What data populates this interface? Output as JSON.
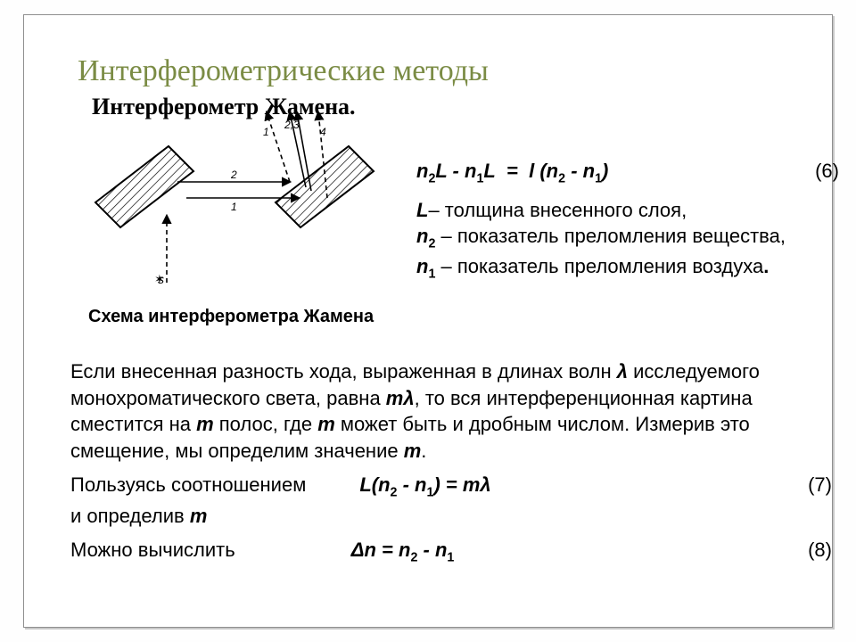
{
  "title": "Интерферометрические методы",
  "subtitle": "Интерферометр Жамена.",
  "diagram": {
    "caption": "Схема интерферометра Жамена",
    "labels": {
      "s": "s",
      "r1": "1",
      "r2": "2",
      "r23": "2,3",
      "r4": "4",
      "path1": "1",
      "path2": "2"
    },
    "colors": {
      "stroke": "#000000",
      "hatch": "#000000",
      "bg": "#ffffff"
    },
    "line_width": 1.6
  },
  "equation6": {
    "formula_html": "n<sub>2</sub>L - n<sub>1</sub>L  =  l (n<sub>2</sub> - n<sub>1</sub>)",
    "number": "(6)"
  },
  "definitions": {
    "L": "L– толщина внесенного слоя,",
    "n2": "n<sub>2</sub> – показатель преломления вещества,",
    "n1": "n<sub>1</sub> – показатель преломления воздуха."
  },
  "paragraph": "Если внесенная разность хода, выраженная в длинах волн <span class=\"sym\">λ</span> исследуемого монохроматического света, равна <span class=\"sym\">mλ</span>, то вся интерференционная картина сместится на <span class=\"sym\">m</span> полос, где <span class=\"sym\">m</span> может быть и дробным числом. Измерив это смещение, мы определим значение <span class=\"sym\">m</span>.",
  "eq7": {
    "prefix": "Пользуясь соотношением",
    "formula": "L(n<sub>2</sub> - n<sub>1</sub>) = mλ",
    "number": "(7)"
  },
  "line_m": "и определив <span class=\"sym\">m</span>",
  "eq8": {
    "prefix": "Можно вычислить",
    "formula": "Δn = n<sub>2</sub> - n<sub>1</sub>",
    "number": "(8)"
  },
  "colors": {
    "title": "#7b8c45",
    "text": "#000000",
    "frame": "#8f8f8f"
  }
}
